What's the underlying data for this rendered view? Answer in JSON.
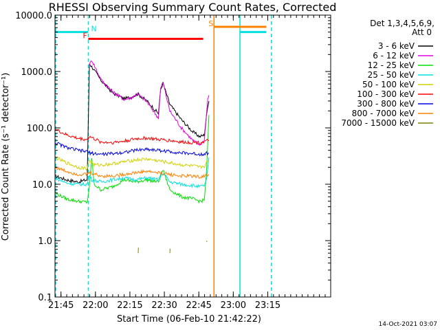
{
  "chart_data": {
    "type": "line",
    "title": "RHESSI Observing Summary Count Rates, Corrected",
    "xlabel": "Start Time (06-Feb-10 21:42:22)",
    "ylabel": "Corrected Count Rate (s⁻¹ detector⁻¹)",
    "y_scale": "log",
    "ylim": [
      0.1,
      10000
    ],
    "y_ticks": [
      "0.1",
      "1.0",
      "10.0",
      "100.0",
      "1000.0",
      "10000.0"
    ],
    "x_range_min": [
      0,
      120
    ],
    "x_ticks": [
      {
        "min": 2.6,
        "label": "21:45"
      },
      {
        "min": 17.6,
        "label": "22:00"
      },
      {
        "min": 32.6,
        "label": "22:15"
      },
      {
        "min": 47.6,
        "label": "22:30"
      },
      {
        "min": 62.6,
        "label": "22:45"
      },
      {
        "min": 77.6,
        "label": "23:00"
      },
      {
        "min": 92.6,
        "label": "23:15"
      }
    ],
    "legend_header": [
      "Det 1,3,4,5,6,9,",
      "Att 0"
    ],
    "series": [
      {
        "name": "3 - 6 keV",
        "color": "#000000",
        "points": [
          [
            0,
            14
          ],
          [
            5,
            12
          ],
          [
            10,
            11
          ],
          [
            14,
            12
          ],
          [
            15,
            1400
          ],
          [
            20,
            700
          ],
          [
            25,
            420
          ],
          [
            30,
            330
          ],
          [
            33,
            350
          ],
          [
            36,
            400
          ],
          [
            40,
            300
          ],
          [
            45,
            180
          ],
          [
            46,
            480
          ],
          [
            47,
            620
          ],
          [
            50,
            260
          ],
          [
            55,
            140
          ],
          [
            60,
            85
          ],
          [
            63,
            70
          ],
          [
            65,
            75
          ],
          [
            66.5,
            250
          ],
          [
            67,
            300
          ]
        ]
      },
      {
        "name": "6 - 12 keV",
        "color": "#e000e0",
        "points": [
          [
            15,
            1300
          ],
          [
            16,
            1600
          ],
          [
            20,
            720
          ],
          [
            25,
            440
          ],
          [
            30,
            320
          ],
          [
            33,
            340
          ],
          [
            36,
            400
          ],
          [
            40,
            290
          ],
          [
            45,
            150
          ],
          [
            46,
            500
          ],
          [
            47,
            640
          ],
          [
            50,
            200
          ],
          [
            55,
            100
          ],
          [
            60,
            60
          ],
          [
            63,
            50
          ],
          [
            65,
            60
          ],
          [
            66.5,
            330
          ],
          [
            67,
            380
          ]
        ]
      },
      {
        "name": "12 - 25 keV",
        "color": "#00e000",
        "points": [
          [
            0,
            7
          ],
          [
            5,
            5.5
          ],
          [
            10,
            5
          ],
          [
            14,
            4.8
          ],
          [
            15,
            9
          ],
          [
            16,
            30
          ],
          [
            17,
            10
          ],
          [
            20,
            8
          ],
          [
            25,
            9
          ],
          [
            30,
            12
          ],
          [
            35,
            11
          ],
          [
            40,
            12
          ],
          [
            45,
            11
          ],
          [
            47,
            18
          ],
          [
            50,
            8
          ],
          [
            55,
            6
          ],
          [
            60,
            5.5
          ],
          [
            63,
            5
          ],
          [
            65,
            5.2
          ],
          [
            66,
            18
          ],
          [
            67,
            170
          ]
        ]
      },
      {
        "name": "25 - 50 keV",
        "color": "#00e0e0",
        "points": [
          [
            0,
            13
          ],
          [
            5,
            10.5
          ],
          [
            10,
            10
          ],
          [
            14,
            10
          ],
          [
            15,
            14
          ],
          [
            16,
            12
          ],
          [
            20,
            11
          ],
          [
            25,
            12
          ],
          [
            30,
            13
          ],
          [
            35,
            12
          ],
          [
            40,
            13
          ],
          [
            45,
            12
          ],
          [
            47,
            16
          ],
          [
            50,
            11
          ],
          [
            55,
            10
          ],
          [
            60,
            9.5
          ],
          [
            63,
            9
          ],
          [
            65,
            9.5
          ],
          [
            66,
            12
          ],
          [
            67,
            30
          ]
        ]
      },
      {
        "name": "50 - 100 keV",
        "color": "#d0d000",
        "points": [
          [
            0,
            30
          ],
          [
            5,
            24
          ],
          [
            10,
            20
          ],
          [
            14,
            19
          ],
          [
            15,
            27
          ],
          [
            17,
            22
          ],
          [
            20,
            22
          ],
          [
            25,
            23
          ],
          [
            30,
            25
          ],
          [
            35,
            27
          ],
          [
            40,
            28
          ],
          [
            45,
            26
          ],
          [
            50,
            24
          ],
          [
            55,
            22
          ],
          [
            60,
            21
          ],
          [
            63,
            20
          ],
          [
            65,
            21
          ],
          [
            66,
            24
          ],
          [
            67,
            26
          ]
        ]
      },
      {
        "name": "100 - 300 keV",
        "color": "#ff0000",
        "points": [
          [
            0,
            95
          ],
          [
            5,
            75
          ],
          [
            10,
            65
          ],
          [
            14,
            62
          ],
          [
            15,
            70
          ],
          [
            20,
            56
          ],
          [
            25,
            55
          ],
          [
            30,
            58
          ],
          [
            35,
            64
          ],
          [
            40,
            66
          ],
          [
            45,
            62
          ],
          [
            50,
            60
          ],
          [
            55,
            56
          ],
          [
            60,
            55
          ],
          [
            63,
            55
          ],
          [
            65,
            57
          ],
          [
            67,
            60
          ]
        ]
      },
      {
        "name": "300 - 800 keV",
        "color": "#0000e0",
        "points": [
          [
            0,
            55
          ],
          [
            5,
            45
          ],
          [
            10,
            40
          ],
          [
            14,
            38
          ],
          [
            15,
            36
          ],
          [
            20,
            34
          ],
          [
            25,
            35
          ],
          [
            30,
            37
          ],
          [
            35,
            40
          ],
          [
            40,
            42
          ],
          [
            45,
            40
          ],
          [
            50,
            38
          ],
          [
            55,
            36
          ],
          [
            60,
            35
          ],
          [
            63,
            34
          ],
          [
            65,
            35
          ],
          [
            67,
            36
          ]
        ]
      },
      {
        "name": "800 - 7000 keV",
        "color": "#ff8000",
        "points": [
          [
            0,
            20
          ],
          [
            5,
            17
          ],
          [
            10,
            15
          ],
          [
            14,
            15
          ],
          [
            15,
            16
          ],
          [
            20,
            14
          ],
          [
            25,
            14
          ],
          [
            30,
            15
          ],
          [
            35,
            16
          ],
          [
            40,
            17
          ],
          [
            45,
            16
          ],
          [
            50,
            15
          ],
          [
            55,
            14
          ],
          [
            60,
            14
          ],
          [
            63,
            13.5
          ],
          [
            65,
            14
          ],
          [
            67,
            15
          ]
        ]
      },
      {
        "name": "7000 - 15000 keV",
        "color": "#808000",
        "points": [
          [
            36.2,
            0.6
          ],
          [
            36.3,
            0.75
          ],
          [
            50,
            0.6
          ],
          [
            50.1,
            0.72
          ],
          [
            66,
            0.95
          ],
          [
            66.1,
            1.0
          ]
        ]
      }
    ],
    "flags": [
      {
        "label": "N",
        "color": "#00e0e0",
        "x0": 0,
        "x1": 14.5,
        "y": 5000
      },
      {
        "label": "F",
        "color": "#ff0000",
        "x0": 14.5,
        "x1": 64.5,
        "y": 3800
      },
      {
        "label": "S",
        "color": "#ff8000",
        "x0": 69.2,
        "x1": 92,
        "y": 6200
      },
      {
        "label": "",
        "color": "#00e0e0",
        "x0": 80.5,
        "x1": 92,
        "y": 5000
      }
    ],
    "vlines": [
      {
        "x": 0.3,
        "color": "#00e0e0",
        "dashed": true
      },
      {
        "x": 14.5,
        "color": "#00e0e0",
        "dashed": true
      },
      {
        "x": 69.2,
        "color": "#ff8000",
        "dashed": false
      },
      {
        "x": 80.5,
        "color": "#00e0e0",
        "dashed": false
      },
      {
        "x": 94.2,
        "color": "#00e0e0",
        "dashed": true
      }
    ],
    "footer": "14-Oct-2021 03:07"
  }
}
